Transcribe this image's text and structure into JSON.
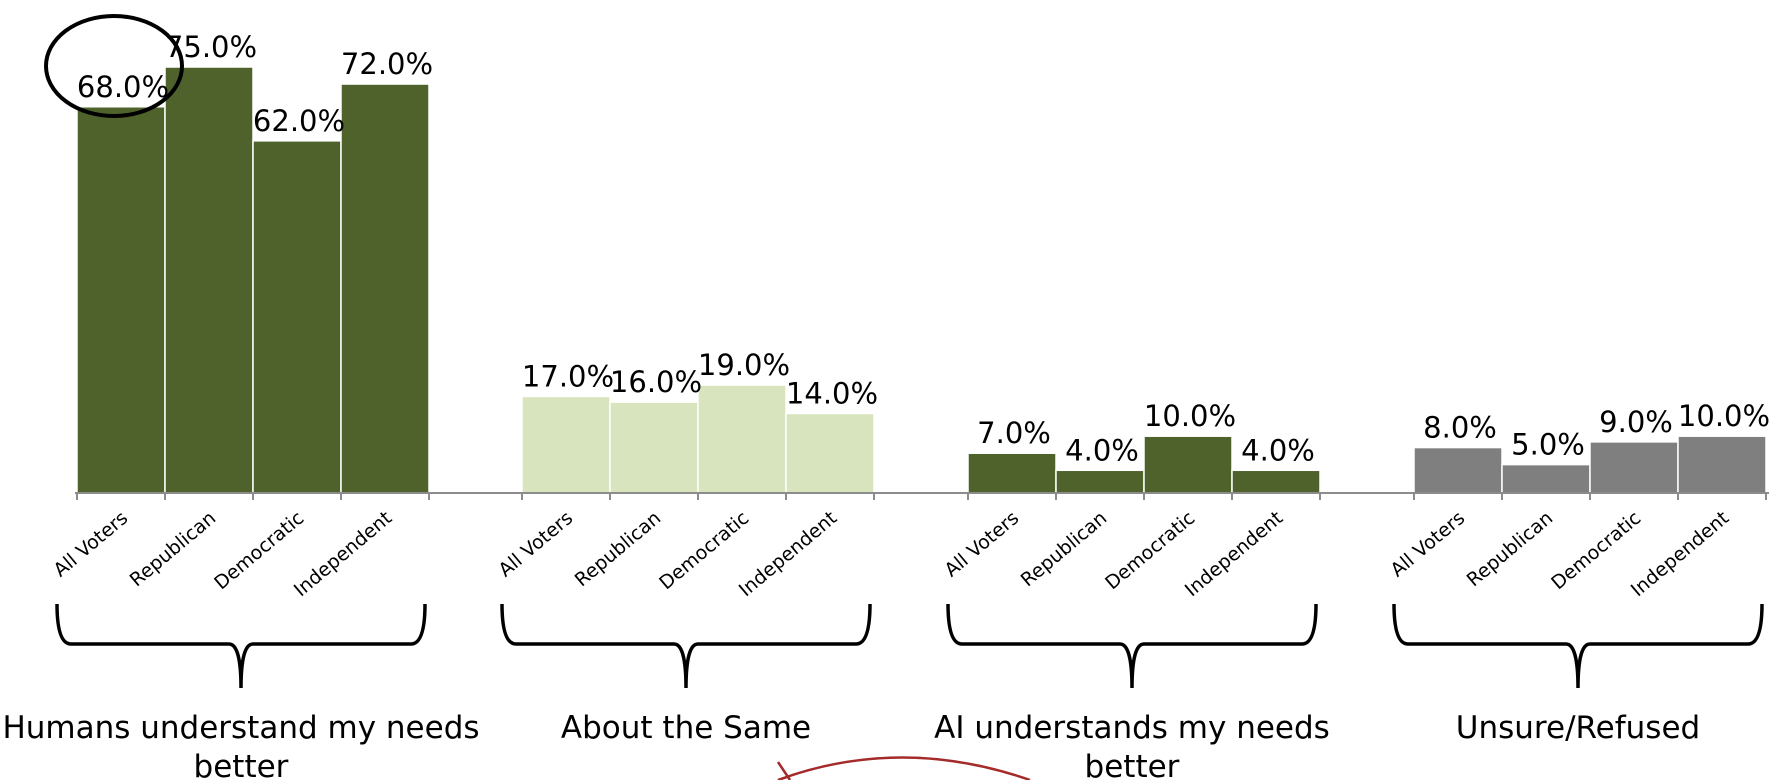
{
  "chart_data": {
    "type": "bar",
    "title": "",
    "xlabel": "",
    "ylabel": "",
    "ylim": [
      0,
      80
    ],
    "grid": false,
    "legend": "none",
    "subcategories": [
      "All Voters",
      "Republican",
      "Democratic",
      "Independent"
    ],
    "groups": [
      {
        "label": "Humans understand my needs better",
        "label_lines": [
          "Humans understand my needs",
          "better"
        ],
        "color": "#4f622b",
        "values": [
          68.0,
          75.0,
          62.0,
          72.0
        ],
        "value_labels": [
          "68.0%",
          "75.0%",
          "62.0%",
          "72.0%"
        ]
      },
      {
        "label": "About the  Same",
        "label_lines": [
          "About the  Same"
        ],
        "color": "#d7e4bd",
        "values": [
          17.0,
          16.0,
          19.0,
          14.0
        ],
        "value_labels": [
          "17.0%",
          "16.0%",
          "19.0%",
          "14.0%"
        ]
      },
      {
        "label": "AI understands my needs better",
        "label_lines": [
          "AI understands my needs",
          "better"
        ],
        "color": "#4f622b",
        "values": [
          7.0,
          4.0,
          10.0,
          4.0
        ],
        "value_labels": [
          "7.0%",
          "4.0%",
          "10.0%",
          "4.0%"
        ]
      },
      {
        "label": "Unsure/Refused",
        "label_lines": [
          "Unsure/Refused"
        ],
        "color": "#7f7f7f",
        "values": [
          8.0,
          5.0,
          9.0,
          10.0
        ],
        "value_labels": [
          "8.0%",
          "5.0%",
          "9.0%",
          "10.0%"
        ]
      }
    ],
    "annotations": [
      {
        "type": "ellipse-highlight",
        "target": "68.0%",
        "color": "#000000"
      },
      {
        "type": "curved-arrow",
        "color": "#a52a2a"
      }
    ]
  }
}
